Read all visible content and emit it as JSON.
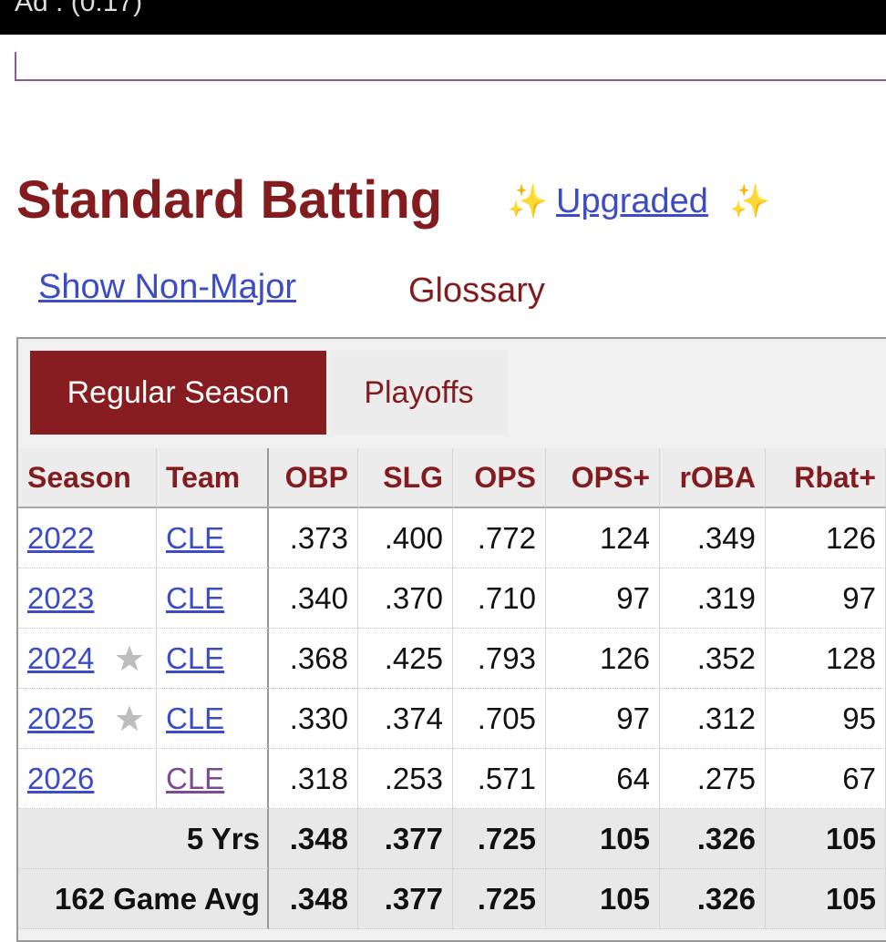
{
  "ad_label": "Ad : (0:17)",
  "header": {
    "title": "Standard Batting",
    "sparkle": "✨",
    "upgrade_link": "Upgraded"
  },
  "links": {
    "non_major": "Show Non-Major",
    "glossary": "Glossary"
  },
  "tabs": [
    "Regular Season",
    "Playoffs"
  ],
  "table": {
    "columns": [
      "Season",
      "Team",
      "OBP",
      "SLG",
      "OPS",
      "OPS+",
      "rOBA",
      "Rbat+"
    ],
    "rows": [
      [
        "2022",
        "CLE",
        ".373",
        ".400",
        ".772",
        "124",
        ".349",
        "126"
      ],
      [
        "2023",
        "CLE",
        ".340",
        ".370",
        ".710",
        "97",
        ".319",
        "97"
      ],
      [
        "2024",
        "CLE",
        ".368",
        ".425",
        ".793",
        "126",
        ".352",
        "128"
      ],
      [
        "2025",
        "CLE",
        ".330",
        ".374",
        ".705",
        "97",
        ".312",
        "95"
      ],
      [
        "2026",
        "CLE",
        ".318",
        ".253",
        ".571",
        "64",
        ".275",
        "67"
      ]
    ],
    "totals": [
      [
        "5 Yrs",
        ".348",
        ".377",
        ".725",
        "105",
        ".326",
        "105"
      ],
      [
        "162 Game Avg",
        ".348",
        ".377",
        ".725",
        "105",
        ".326",
        "105"
      ]
    ]
  }
}
